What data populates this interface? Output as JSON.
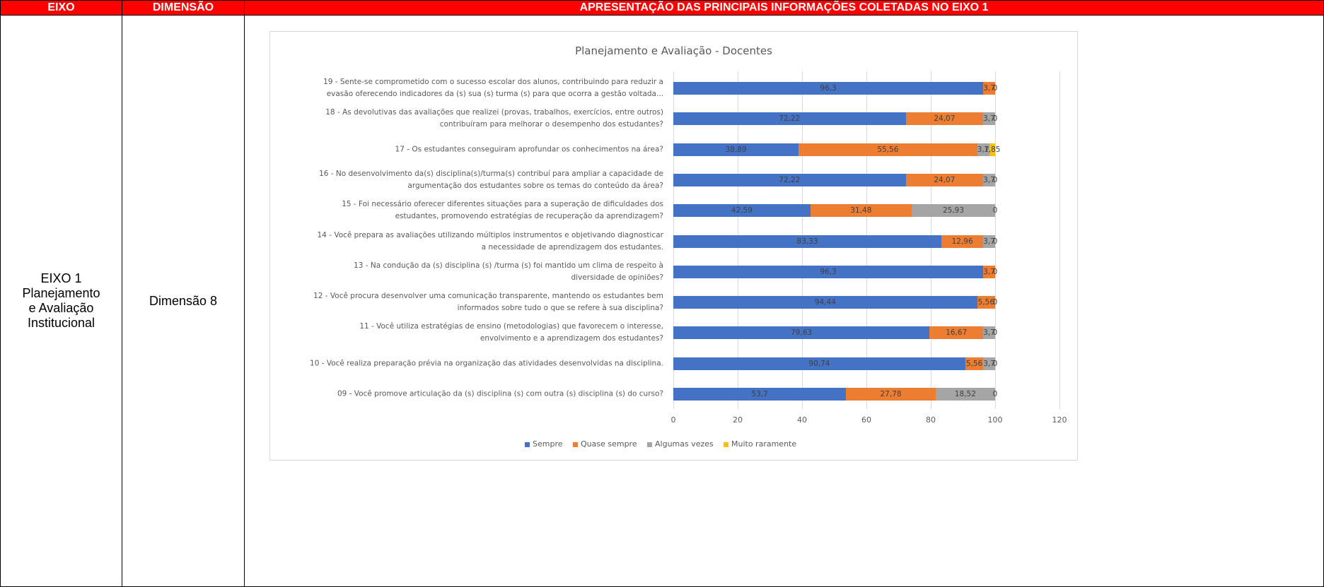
{
  "table": {
    "header": [
      "EIXO",
      "DIMENSÃO",
      "APRESENTAÇÃO DAS PRINCIPAIS INFORMAÇÕES COLETADAS NO EIXO 1"
    ],
    "rows": [
      [
        "EIXO 1\nPlanejamento\ne Avaliação\nInstitucional",
        "Dimensão 8"
      ]
    ]
  },
  "chart_data": {
    "type": "hbar_stacked",
    "title": "Planejamento e Avaliação - Docentes",
    "categories": [
      "19 - Sente-se comprometido com o sucesso escolar dos alunos, contribuindo para reduzir a\nevasão oferecendo indicadores da (s) sua (s) turma (s) para que ocorra a gestão voltada...",
      "18 - As devolutivas das avaliações que realizei (provas, trabalhos, exercícios, entre outros)\ncontribuíram para melhorar o desempenho dos estudantes?",
      "17 - Os estudantes conseguiram aprofundar os conhecimentos na área?",
      "16 - No desenvolvimento da(s) disciplina(s)/turma(s) contribuí para ampliar a capacidade de\nargumentação dos estudantes sobre os temas do conteúdo da área?",
      "15 - Foi necessário oferecer diferentes situações para a superação de dificuldades dos\nestudantes, promovendo estratégias de recuperação da aprendizagem?",
      "14 - Você prepara as avaliações utilizando múltiplos instrumentos e objetivando diagnosticar\na necessidade de aprendizagem dos estudantes.",
      "13 - Na condução da (s) disciplina (s) /turma (s) foi mantido um clima de respeito à\ndiversidade de opiniões?",
      "12 - Você procura desenvolver uma comunicação transparente, mantendo os estudantes bem\ninformados sobre tudo o que se refere à sua disciplina?",
      "11 - Você utiliza estratégias de ensino (metodologias) que favorecem o interesse,\nenvolvimento e a aprendizagem dos estudantes?",
      "10 - Você realiza preparação prévia na organização das atividades desenvolvidas na disciplina.",
      "09 - Você promove articulação da (s) disciplina (s) com outra (s) disciplina (s) do curso?"
    ],
    "series": [
      {
        "name": "Sempre",
        "color": "#4472c4",
        "values": [
          96.3,
          72.22,
          38.89,
          72.22,
          42.59,
          83.33,
          96.3,
          94.44,
          79.63,
          90.74,
          53.7
        ],
        "value_labels": [
          "96,3",
          "72,22",
          "38,89",
          "72,22",
          "42,59",
          "83,33",
          "96,3",
          "94,44",
          "79,63",
          "90,74",
          "53,7"
        ]
      },
      {
        "name": "Quase sempre",
        "color": "#ed7d31",
        "values": [
          3.7,
          24.07,
          55.56,
          24.07,
          31.48,
          12.96,
          3.7,
          5.56,
          16.67,
          5.56,
          27.78
        ],
        "value_labels": [
          "3,7",
          "24,07",
          "55,56",
          "24,07",
          "31,48",
          "12,96",
          "3,7",
          "5,56",
          "16,67",
          "5,56",
          "27,78"
        ]
      },
      {
        "name": "Algumas vezes",
        "color": "#a5a5a5",
        "values": [
          null,
          3.7,
          3.7,
          3.7,
          25.93,
          3.7,
          null,
          null,
          3.7,
          3.7,
          18.52
        ],
        "value_labels": [
          null,
          "3,7",
          "3,7",
          "3,7",
          "25,93",
          "3,7",
          null,
          null,
          "3,7",
          "3,7",
          "18,52"
        ]
      },
      {
        "name": "Muito raramente",
        "color": "#ffc000",
        "values": [
          0,
          0,
          1.85,
          0,
          0,
          0,
          0,
          0,
          0,
          0,
          0
        ],
        "value_labels": [
          "0",
          "0",
          "1,85",
          "0",
          "0",
          "0",
          "0",
          "0",
          "0",
          "0",
          "0"
        ]
      }
    ],
    "xlim": [
      0,
      120
    ],
    "xticks": [
      0,
      20,
      40,
      60,
      80,
      100,
      120
    ],
    "grid": true,
    "legend": "bottom"
  }
}
